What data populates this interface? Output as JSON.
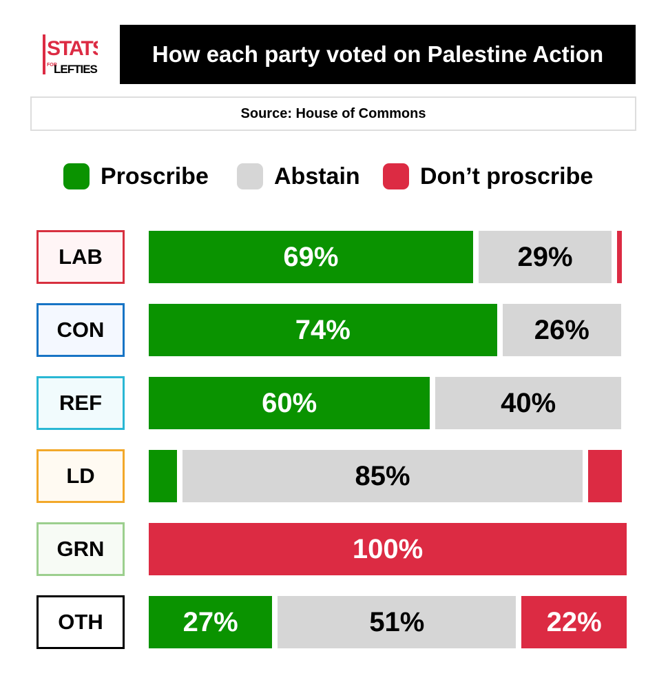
{
  "logo": {
    "top_text": "STATS",
    "for_text": "FOR",
    "bottom_text": "LEFTIES"
  },
  "title": "How each party voted on Palestine Action",
  "source": "Source: House of Commons",
  "colors": {
    "proscribe": "#0a9300",
    "abstain": "#d6d6d6",
    "dont": "#dc2b43"
  },
  "chart_data": {
    "type": "bar",
    "stacked": true,
    "orientation": "horizontal",
    "title": "How each party voted on Palestine Action",
    "legend_position": "top",
    "categories": [
      "LAB",
      "CON",
      "REF",
      "LD",
      "GRN",
      "OTH"
    ],
    "series": [
      {
        "name": "Proscribe",
        "values": [
          69,
          74,
          60,
          7,
          0,
          27
        ]
      },
      {
        "name": "Abstain",
        "values": [
          29,
          26,
          40,
          85,
          0,
          51
        ]
      },
      {
        "name": "Don’t proscribe",
        "values": [
          1,
          0,
          0,
          7,
          100,
          22
        ]
      }
    ],
    "data_labels": [
      [
        "69%",
        "29%",
        ""
      ],
      [
        "74%",
        "26%",
        ""
      ],
      [
        "60%",
        "40%",
        ""
      ],
      [
        "",
        "85%",
        ""
      ],
      [
        "",
        "",
        "100%"
      ],
      [
        "27%",
        "51%",
        "22%"
      ]
    ],
    "party_border_colors": [
      "#d7303f",
      "#1774c5",
      "#29b7d4",
      "#f2a82a",
      "#9ccf8e",
      "#000000"
    ],
    "party_bg_colors": [
      "#fff5f6",
      "#f4f8ff",
      "#f1fbfd",
      "#fffaf2",
      "#f7fbf5",
      "#ffffff"
    ],
    "xlim": [
      0,
      100
    ]
  }
}
